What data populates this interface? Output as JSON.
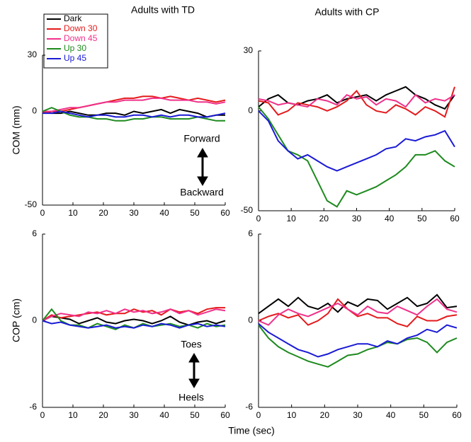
{
  "xlabel": "Time (sec)",
  "chart_data": [
    {
      "type": "line",
      "title": "Adults with TD",
      "ylabel": "COM (mm)",
      "annotations": [
        "Forward",
        "Backward"
      ],
      "x": [
        0,
        3,
        6,
        9,
        12,
        15,
        18,
        21,
        24,
        27,
        30,
        33,
        36,
        39,
        42,
        45,
        48,
        51,
        54,
        57,
        60
      ],
      "xlim": [
        0,
        60
      ],
      "xticks": [
        0,
        10,
        20,
        30,
        40,
        50,
        60
      ],
      "ylim": [
        -50,
        30
      ],
      "yticks": [
        -50,
        0,
        30
      ],
      "series": [
        {
          "name": "Dark",
          "color": "#000000",
          "values": [
            0,
            -1,
            -1,
            0,
            -1,
            -2,
            -2,
            -1,
            -1,
            -2,
            0,
            -1,
            0,
            1,
            -1,
            1,
            0,
            -1,
            -3,
            -2,
            -2
          ]
        },
        {
          "name": "Down 30",
          "color": "#e41a1c",
          "values": [
            -1,
            0,
            0,
            1,
            2,
            3,
            4,
            5,
            6,
            7,
            7,
            8,
            8,
            7,
            8,
            7,
            6,
            7,
            6,
            5,
            6
          ]
        },
        {
          "name": "Down 45",
          "color": "#f0308a",
          "values": [
            0,
            0,
            1,
            2,
            2,
            3,
            4,
            5,
            5,
            6,
            6,
            6,
            7,
            7,
            6,
            6,
            6,
            5,
            5,
            4,
            5
          ]
        },
        {
          "name": "Up 30",
          "color": "#1e8a1e",
          "values": [
            0,
            2,
            0,
            -2,
            -3,
            -3,
            -4,
            -4,
            -5,
            -5,
            -4,
            -4,
            -3,
            -3,
            -4,
            -4,
            -4,
            -3,
            -4,
            -5,
            -5
          ]
        },
        {
          "name": "Up 45",
          "color": "#1a1ad6",
          "values": [
            -1,
            -1,
            0,
            -1,
            -2,
            -3,
            -2,
            -2,
            -3,
            -3,
            -2,
            -2,
            -3,
            -2,
            -3,
            -2,
            -2,
            -3,
            -3,
            -2,
            -1
          ]
        }
      ]
    },
    {
      "type": "line",
      "title": "Adults with CP",
      "x": [
        0,
        3,
        6,
        9,
        12,
        15,
        18,
        21,
        24,
        27,
        30,
        33,
        36,
        39,
        42,
        45,
        48,
        51,
        54,
        57,
        60
      ],
      "xlim": [
        0,
        60
      ],
      "xticks": [
        0,
        10,
        20,
        30,
        40,
        50,
        60
      ],
      "ylim": [
        -50,
        30
      ],
      "yticks": [
        -50,
        0,
        30
      ],
      "series": [
        {
          "color": "#000000",
          "values": [
            2,
            6,
            8,
            4,
            3,
            5,
            6,
            8,
            4,
            6,
            7,
            8,
            5,
            8,
            10,
            12,
            8,
            6,
            3,
            1,
            8
          ]
        },
        {
          "color": "#e41a1c",
          "values": [
            5,
            4,
            -2,
            0,
            4,
            3,
            2,
            0,
            2,
            5,
            10,
            3,
            0,
            -1,
            3,
            1,
            -2,
            2,
            0,
            -3,
            12
          ]
        },
        {
          "color": "#f0308a",
          "values": [
            6,
            5,
            3,
            4,
            3,
            2,
            6,
            5,
            3,
            8,
            6,
            7,
            3,
            6,
            5,
            2,
            8,
            4,
            6,
            5,
            8
          ]
        },
        {
          "color": "#1e8a1e",
          "values": [
            2,
            -4,
            -12,
            -20,
            -22,
            -25,
            -35,
            -45,
            -48,
            -40,
            -42,
            -40,
            -38,
            -35,
            -32,
            -28,
            -22,
            -22,
            -20,
            -25,
            -28
          ]
        },
        {
          "color": "#1a1ad6",
          "values": [
            0,
            -5,
            -15,
            -20,
            -24,
            -22,
            -25,
            -28,
            -30,
            -28,
            -26,
            -24,
            -22,
            -19,
            -18,
            -14,
            -15,
            -13,
            -12,
            -10,
            -18
          ]
        }
      ]
    },
    {
      "type": "line",
      "ylabel": "COP (cm)",
      "annotations": [
        "Toes",
        "Heels"
      ],
      "x": [
        0,
        3,
        6,
        9,
        12,
        15,
        18,
        21,
        24,
        27,
        30,
        33,
        36,
        39,
        42,
        45,
        48,
        51,
        54,
        57,
        60
      ],
      "xlim": [
        0,
        60
      ],
      "xticks": [
        0,
        10,
        20,
        30,
        40,
        50,
        60
      ],
      "ylim": [
        -6,
        6
      ],
      "yticks": [
        -6,
        0,
        6
      ],
      "series": [
        {
          "color": "#000000",
          "values": [
            0,
            0.3,
            0.2,
            0.1,
            -0.2,
            0,
            0.2,
            -0.1,
            -0.2,
            0,
            0.1,
            0,
            -0.2,
            0,
            0.3,
            -0.1,
            -0.3,
            -0.1,
            0,
            -0.2,
            0
          ]
        },
        {
          "color": "#e41a1c",
          "values": [
            0,
            0.4,
            0.2,
            0.3,
            0.4,
            0.5,
            0.6,
            0.4,
            0.5,
            0.5,
            0.8,
            0.6,
            0.7,
            0.4,
            0.8,
            0.6,
            0.7,
            0.5,
            0.8,
            0.9,
            0.9
          ]
        },
        {
          "color": "#f0308a",
          "values": [
            0,
            0.3,
            0.5,
            0.4,
            0.3,
            0.6,
            0.5,
            0.7,
            0.5,
            0.8,
            0.6,
            0.7,
            0.5,
            0.6,
            0.8,
            0.5,
            0.7,
            0.4,
            0.6,
            0.8,
            0.7
          ]
        },
        {
          "color": "#1e8a1e",
          "values": [
            0,
            0.8,
            0,
            -0.3,
            -0.3,
            -0.5,
            -0.2,
            -0.4,
            -0.6,
            -0.3,
            -0.5,
            -0.2,
            -0.4,
            -0.3,
            -0.2,
            -0.4,
            -0.3,
            -0.5,
            -0.2,
            -0.4,
            -0.3
          ]
        },
        {
          "color": "#1a1ad6",
          "values": [
            0,
            -0.2,
            -0.1,
            -0.3,
            -0.4,
            -0.5,
            -0.4,
            -0.3,
            -0.5,
            -0.4,
            -0.5,
            -0.3,
            -0.4,
            -0.2,
            -0.3,
            -0.5,
            -0.3,
            -0.2,
            -0.4,
            -0.3,
            -0.4
          ]
        }
      ]
    },
    {
      "type": "line",
      "x": [
        0,
        3,
        6,
        9,
        12,
        15,
        18,
        21,
        24,
        27,
        30,
        33,
        36,
        39,
        42,
        45,
        48,
        51,
        54,
        57,
        60
      ],
      "xlim": [
        0,
        60
      ],
      "xticks": [
        0,
        10,
        20,
        30,
        40,
        50,
        60
      ],
      "ylim": [
        -6,
        6
      ],
      "yticks": [
        -6,
        0,
        6
      ],
      "series": [
        {
          "color": "#000000",
          "values": [
            0.5,
            1,
            1.5,
            1,
            1.6,
            1,
            0.8,
            1.2,
            0.6,
            1.3,
            1,
            1.5,
            1.4,
            0.8,
            1.2,
            1.6,
            1,
            1.2,
            1.8,
            0.9,
            1
          ]
        },
        {
          "color": "#e41a1c",
          "values": [
            0,
            0.3,
            0.5,
            0.2,
            0.4,
            -0.3,
            0,
            0.5,
            1.5,
            0.8,
            0.3,
            0.5,
            0.2,
            0.2,
            -0.2,
            -0.4,
            0.3,
            0,
            0,
            0.3,
            0.4
          ]
        },
        {
          "color": "#f0308a",
          "values": [
            0,
            -0.3,
            0.4,
            0.8,
            0.5,
            0.3,
            0.6,
            0.9,
            1.2,
            0.8,
            0.4,
            1,
            0.6,
            0.5,
            1,
            0.7,
            0.4,
            1,
            1.5,
            0.8,
            0.6
          ]
        },
        {
          "color": "#1e8a1e",
          "values": [
            -0.3,
            -1.2,
            -1.8,
            -2.2,
            -2.5,
            -2.8,
            -3,
            -3.2,
            -2.8,
            -2.4,
            -2.3,
            -2,
            -1.8,
            -1.5,
            -1.6,
            -1.3,
            -1.2,
            -1.5,
            -2.2,
            -1.5,
            -1.2
          ]
        },
        {
          "color": "#1a1ad6",
          "values": [
            -0.2,
            -0.8,
            -1.2,
            -1.6,
            -2,
            -2.2,
            -2.5,
            -2.3,
            -2,
            -1.8,
            -1.6,
            -1.6,
            -1.8,
            -1.4,
            -1.6,
            -1.2,
            -1,
            -0.6,
            -0.8,
            -0.3,
            -0.5
          ]
        }
      ]
    }
  ]
}
